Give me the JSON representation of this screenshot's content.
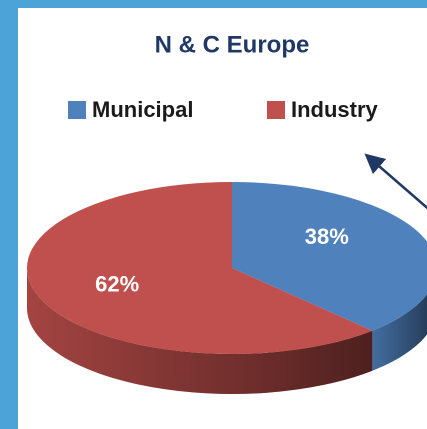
{
  "chart_data": {
    "type": "pie",
    "title": "N & C Europe",
    "categories": [
      "Municipal",
      "Industry"
    ],
    "values": [
      38,
      62
    ],
    "value_labels": [
      "38%",
      "62%"
    ],
    "colors": [
      "#4f81bd",
      "#c0504d"
    ],
    "legend": "top"
  }
}
